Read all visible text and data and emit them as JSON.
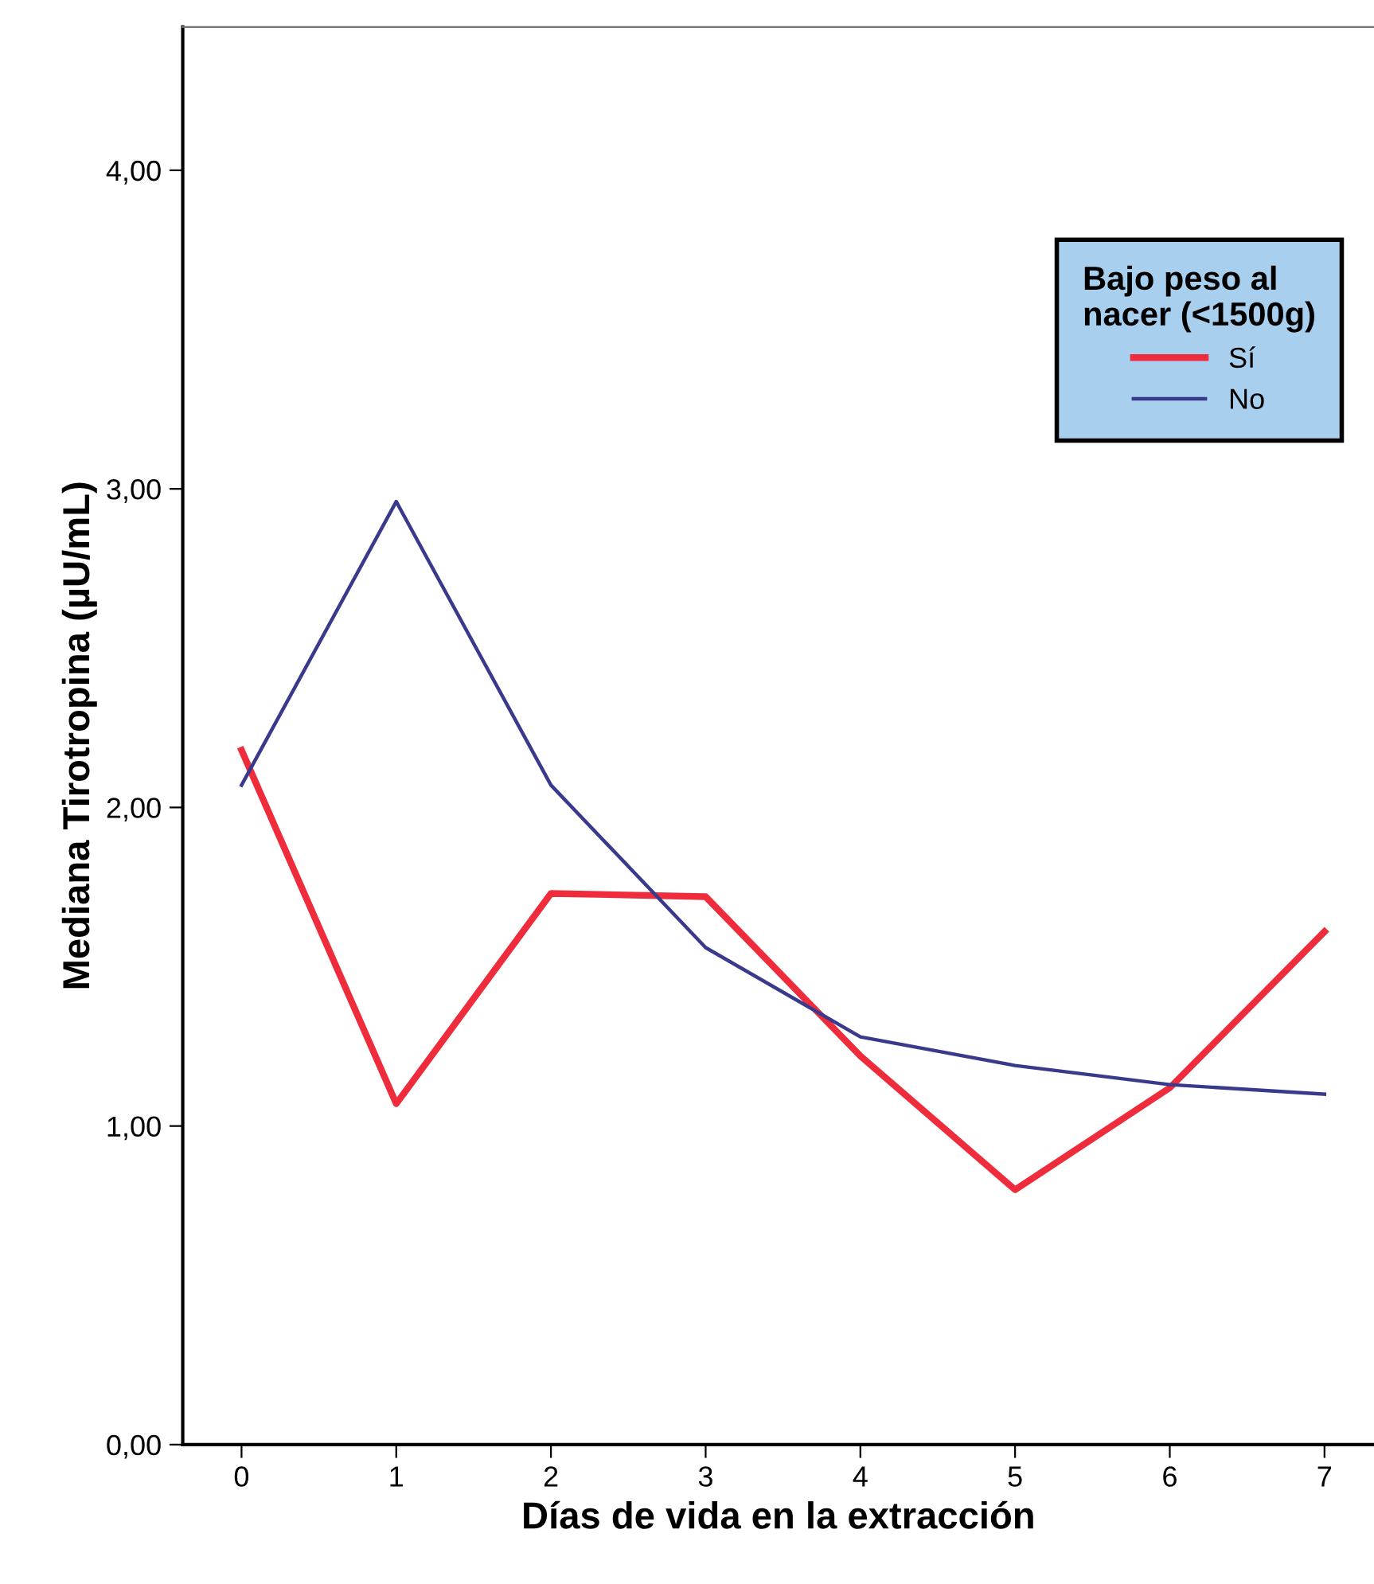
{
  "chart_data": {
    "type": "line",
    "xlabel": "Días de vida en la extracción",
    "ylabel": "Mediana Tirotropina (µU/mL)",
    "legend_title": "Bajo peso al\nnacer (<1500g)",
    "legend": "top right",
    "x": [
      0,
      1,
      2,
      3,
      4,
      5,
      6,
      7
    ],
    "xlim": [
      -0.38,
      7.32
    ],
    "xticks": [
      0,
      1,
      2,
      3,
      4,
      5,
      6,
      7
    ],
    "ylim": [
      0,
      4.45
    ],
    "yticks": [
      {
        "value": 0,
        "label": "0,00"
      },
      {
        "value": 1,
        "label": "1,00"
      },
      {
        "value": 2,
        "label": "2,00"
      },
      {
        "value": 3,
        "label": "3,00"
      },
      {
        "value": 4,
        "label": "4,00"
      }
    ],
    "grid": false,
    "marker": "none",
    "line_style": "solid",
    "series": [
      {
        "name": "Sí",
        "color": "#ee2c3c",
        "values": [
          2.18,
          1.07,
          1.73,
          1.72,
          1.22,
          0.8,
          1.12,
          1.61
        ]
      },
      {
        "name": "No",
        "color": "#3a3a8c",
        "values": [
          2.07,
          2.96,
          2.07,
          1.56,
          1.28,
          1.19,
          1.13,
          1.1
        ]
      }
    ]
  }
}
